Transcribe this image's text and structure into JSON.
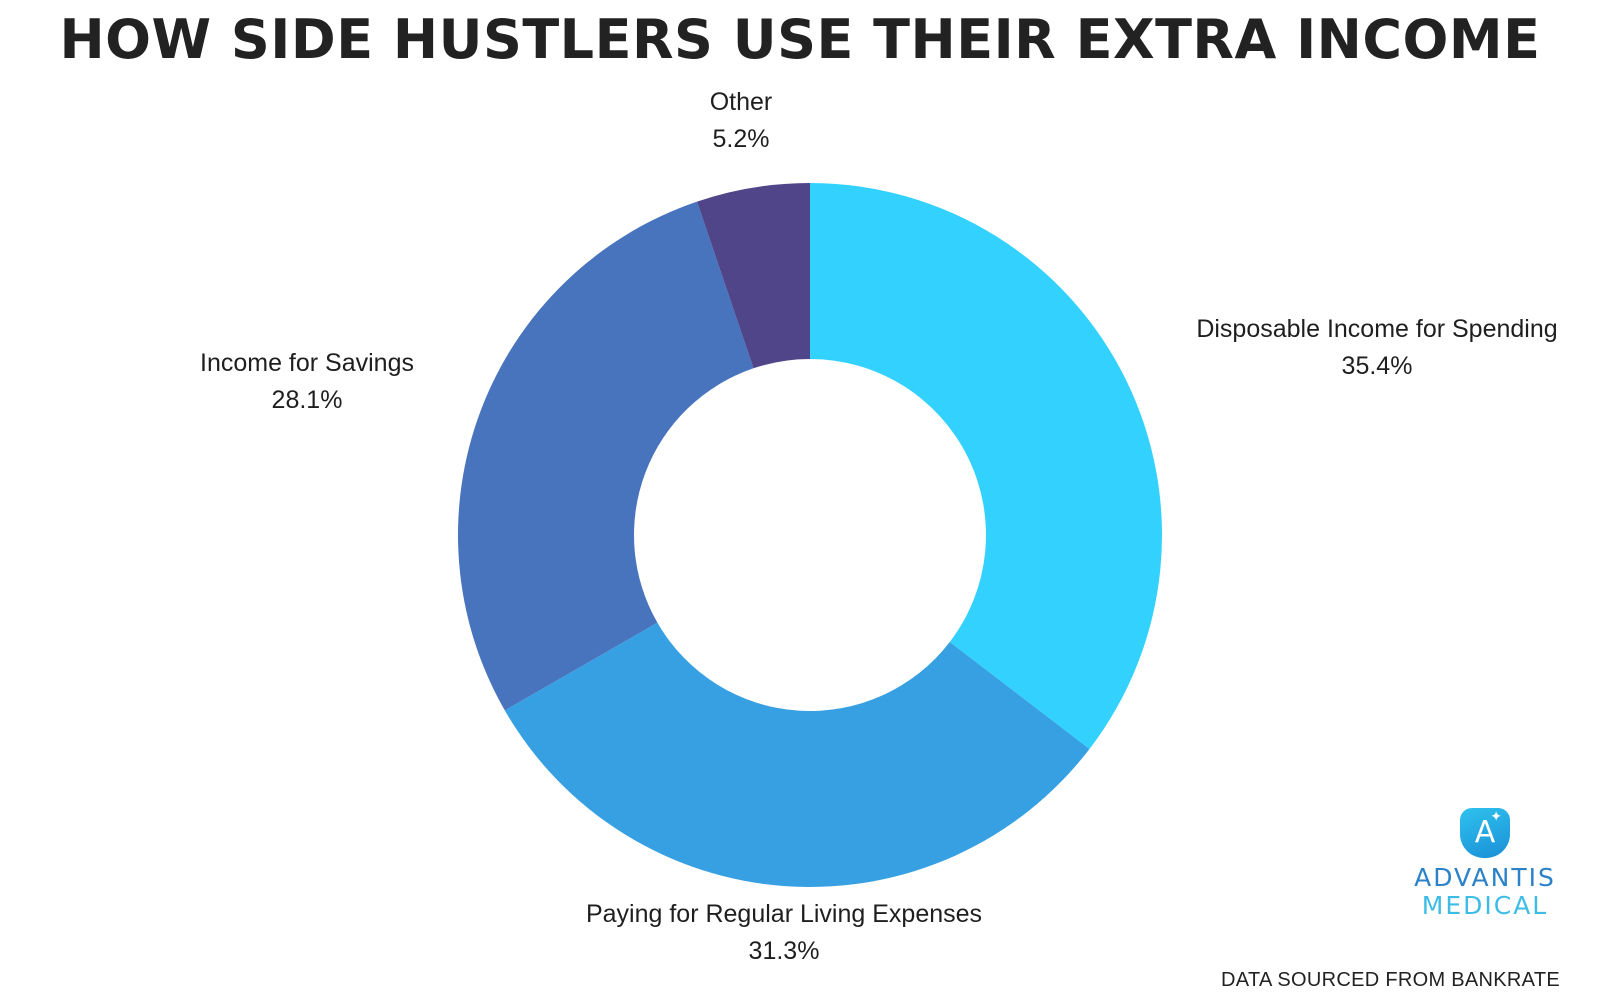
{
  "chart_data": {
    "type": "pie",
    "donut": true,
    "title": "HOW SIDE HUSTLERS USE THEIR EXTRA INCOME",
    "slices": [
      {
        "label": "Disposable Income for Spending",
        "value": 35.4,
        "value_label": "35.4%",
        "color": "#33d1fd"
      },
      {
        "label": "Paying for Regular Living Expenses",
        "value": 31.3,
        "value_label": "31.3%",
        "color": "#37a0e2"
      },
      {
        "label": "Income for Savings",
        "value": 28.1,
        "value_label": "28.1%",
        "color": "#4873bd"
      },
      {
        "label": "Other",
        "value": 5.2,
        "value_label": "5.2%",
        "color": "#4f4588"
      }
    ]
  },
  "footer": {
    "source": "DATA SOURCED FROM BANKRATE"
  },
  "logo": {
    "line1": "ADVANTIS",
    "line2": "MEDICAL",
    "icon": "advantis-logo-icon",
    "colors": {
      "line1": "#2b82c9",
      "line2": "#3dbde6"
    }
  }
}
